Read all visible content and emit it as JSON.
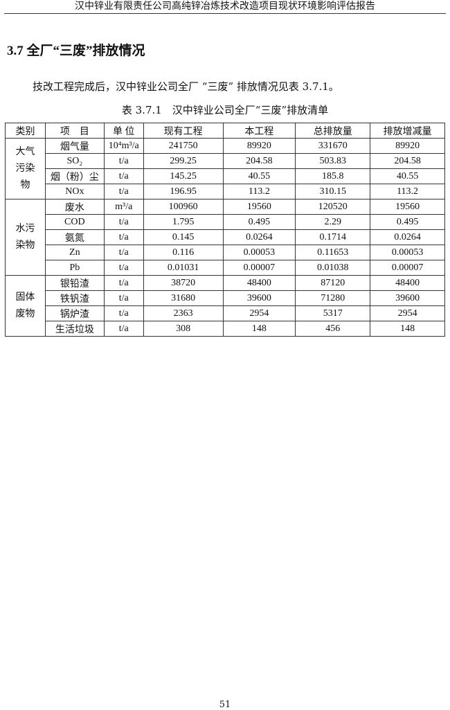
{
  "header": "汉中锌业有限责任公司高纯锌冶炼技术改造项目现状环境影响评估报告",
  "section_title": "3.7 全厂“三废”排放情况",
  "paragraph": "技改工程完成后，汉中锌业公司全厂 “三废” 排放情况见表 3.7.1。",
  "table_caption": "表 3.7.1　汉中锌业公司全厂“三废”排放清单",
  "table": {
    "columns": [
      "类别",
      "项　目",
      "单 位",
      "现有工程",
      "本工程",
      "总排放量",
      "排放增减量"
    ],
    "groups": [
      {
        "category": "大气污染物",
        "rows": [
          [
            "烟气量",
            "10⁴m³/a",
            "241750",
            "89920",
            "331670",
            "89920"
          ],
          [
            "SO₂",
            "t/a",
            "299.25",
            "204.58",
            "503.83",
            "204.58"
          ],
          [
            "烟（粉）尘",
            "t/a",
            "145.25",
            "40.55",
            "185.8",
            "40.55"
          ],
          [
            "NOx",
            "t/a",
            "196.95",
            "113.2",
            "310.15",
            "113.2"
          ]
        ]
      },
      {
        "category": "水污染物",
        "rows": [
          [
            "废水",
            "m³/a",
            "100960",
            "19560",
            "120520",
            "19560"
          ],
          [
            "COD",
            "t/a",
            "1.795",
            "0.495",
            "2.29",
            "0.495"
          ],
          [
            "氨氮",
            "t/a",
            "0.145",
            "0.0264",
            "0.1714",
            "0.0264"
          ],
          [
            "Zn",
            "t/a",
            "0.116",
            "0.00053",
            "0.11653",
            "0.00053"
          ],
          [
            "Pb",
            "t/a",
            "0.01031",
            "0.00007",
            "0.01038",
            "0.00007"
          ]
        ]
      },
      {
        "category": "固体废物",
        "rows": [
          [
            "银铅渣",
            "t/a",
            "38720",
            "48400",
            "87120",
            "48400"
          ],
          [
            "铁钒渣",
            "t/a",
            "31680",
            "39600",
            "71280",
            "39600"
          ],
          [
            "锅炉渣",
            "t/a",
            "2363",
            "2954",
            "5317",
            "2954"
          ],
          [
            "生活垃圾",
            "t/a",
            "308",
            "148",
            "456",
            "148"
          ]
        ]
      }
    ]
  },
  "page_number": "51"
}
